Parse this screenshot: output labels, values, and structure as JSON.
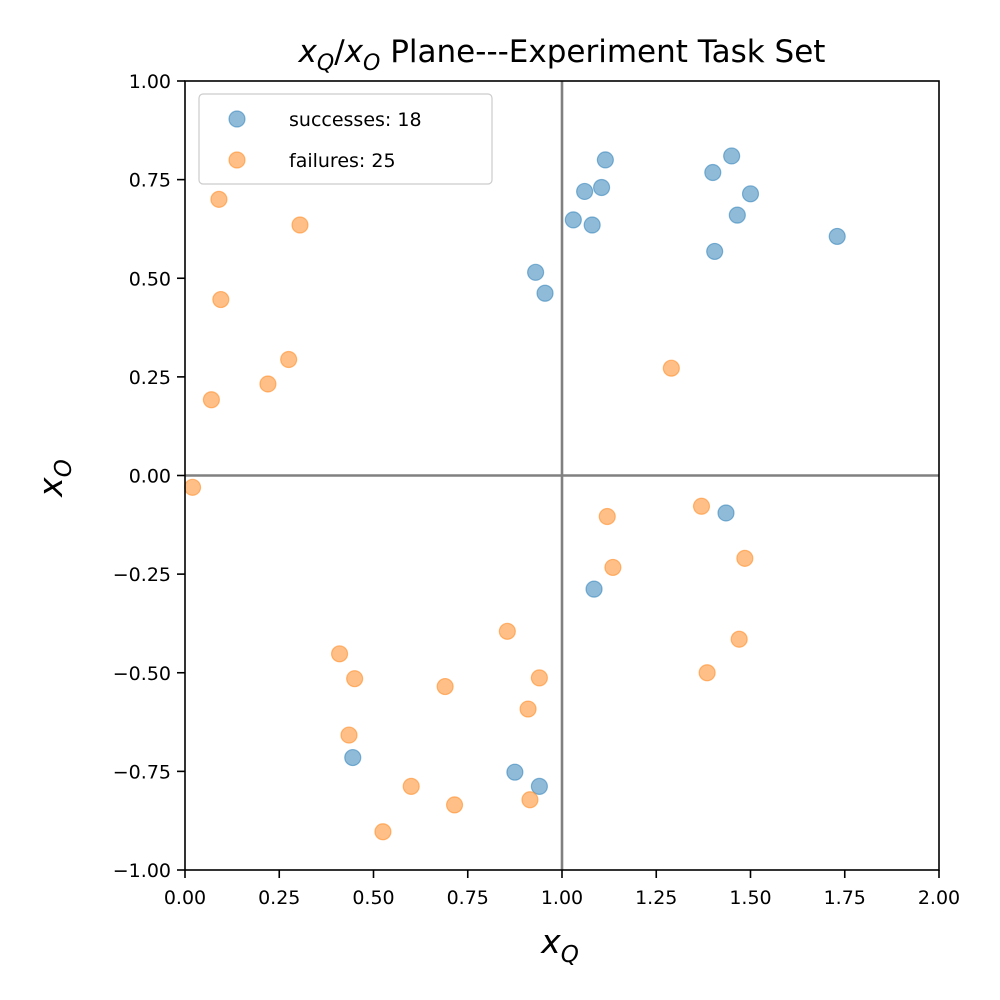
{
  "chart_data": {
    "type": "scatter",
    "title": {
      "var1": "x",
      "sub1": "Q",
      "sep": "/",
      "var2": "x",
      "sub2": "O",
      "rest": " Plane---Experiment Task Set"
    },
    "xlabel": {
      "var": "x",
      "sub": "Q"
    },
    "ylabel": {
      "var": "x",
      "sub": "O"
    },
    "xlim": [
      0,
      2
    ],
    "ylim": [
      -1,
      1
    ],
    "xticks": [
      0,
      0.25,
      0.5,
      0.75,
      1.0,
      1.25,
      1.5,
      1.75,
      2.0
    ],
    "yticks": [
      -1,
      -0.75,
      -0.5,
      -0.25,
      0,
      0.25,
      0.5,
      0.75,
      1.0
    ],
    "xtick_labels": [
      "0.00",
      "0.25",
      "0.50",
      "0.75",
      "1.00",
      "1.25",
      "1.50",
      "1.75",
      "2.00"
    ],
    "ytick_labels": [
      "−1.00",
      "−0.75",
      "−0.50",
      "−0.25",
      "0.00",
      "0.25",
      "0.50",
      "0.75",
      "1.00"
    ],
    "reference_lines": {
      "x": 1.0,
      "y": 0.0,
      "color": "#808080"
    },
    "grid": false,
    "legend_position": "top-left",
    "series": [
      {
        "name": "successes: 18",
        "color": "#1f77b4",
        "points": [
          [
            0.93,
            0.515
          ],
          [
            0.955,
            0.462
          ],
          [
            1.03,
            0.648
          ],
          [
            1.06,
            0.72
          ],
          [
            1.08,
            0.635
          ],
          [
            1.105,
            0.73
          ],
          [
            1.115,
            0.8
          ],
          [
            1.4,
            0.768
          ],
          [
            1.405,
            0.568
          ],
          [
            1.45,
            0.81
          ],
          [
            1.465,
            0.66
          ],
          [
            1.5,
            0.714
          ],
          [
            1.73,
            0.606
          ],
          [
            1.435,
            -0.095
          ],
          [
            1.085,
            -0.288
          ],
          [
            0.445,
            -0.715
          ],
          [
            0.875,
            -0.752
          ],
          [
            0.94,
            -0.788
          ]
        ]
      },
      {
        "name": "failures: 25",
        "color": "#ff7f0e",
        "points": [
          [
            0.09,
            0.7
          ],
          [
            0.305,
            0.635
          ],
          [
            0.095,
            0.446
          ],
          [
            0.275,
            0.294
          ],
          [
            0.22,
            0.232
          ],
          [
            0.07,
            0.192
          ],
          [
            0.02,
            -0.03
          ],
          [
            1.29,
            0.272
          ],
          [
            1.12,
            -0.104
          ],
          [
            1.37,
            -0.078
          ],
          [
            1.135,
            -0.233
          ],
          [
            1.485,
            -0.21
          ],
          [
            0.855,
            -0.395
          ],
          [
            1.47,
            -0.415
          ],
          [
            0.41,
            -0.452
          ],
          [
            0.45,
            -0.515
          ],
          [
            0.69,
            -0.535
          ],
          [
            0.94,
            -0.513
          ],
          [
            0.91,
            -0.592
          ],
          [
            1.385,
            -0.5
          ],
          [
            0.435,
            -0.658
          ],
          [
            0.6,
            -0.788
          ],
          [
            0.915,
            -0.822
          ],
          [
            0.715,
            -0.835
          ],
          [
            0.525,
            -0.903
          ]
        ]
      }
    ]
  }
}
